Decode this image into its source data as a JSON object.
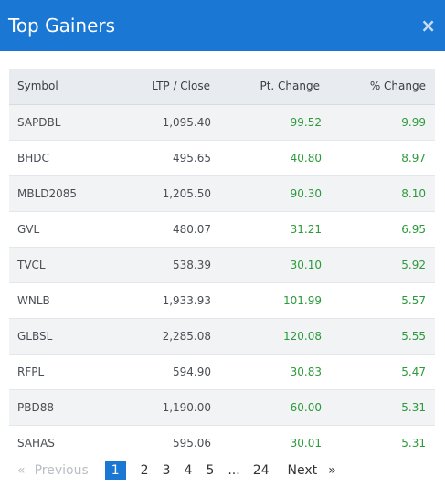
{
  "dialog": {
    "title": "Top Gainers",
    "close_symbol": "×"
  },
  "table": {
    "columns": {
      "symbol": "Symbol",
      "ltp": "LTP / Close",
      "pt_change": "Pt. Change",
      "pct_change": "% Change"
    },
    "rows": [
      {
        "symbol": "SAPDBL",
        "ltp": "1,095.40",
        "pt": "99.52",
        "pct": "9.99"
      },
      {
        "symbol": "BHDC",
        "ltp": "495.65",
        "pt": "40.80",
        "pct": "8.97"
      },
      {
        "symbol": "MBLD2085",
        "ltp": "1,205.50",
        "pt": "90.30",
        "pct": "8.10"
      },
      {
        "symbol": "GVL",
        "ltp": "480.07",
        "pt": "31.21",
        "pct": "6.95"
      },
      {
        "symbol": "TVCL",
        "ltp": "538.39",
        "pt": "30.10",
        "pct": "5.92"
      },
      {
        "symbol": "WNLB",
        "ltp": "1,933.93",
        "pt": "101.99",
        "pct": "5.57"
      },
      {
        "symbol": "GLBSL",
        "ltp": "2,285.08",
        "pt": "120.08",
        "pct": "5.55"
      },
      {
        "symbol": "RFPL",
        "ltp": "594.90",
        "pt": "30.83",
        "pct": "5.47"
      },
      {
        "symbol": "PBD88",
        "ltp": "1,190.00",
        "pt": "60.00",
        "pct": "5.31"
      },
      {
        "symbol": "SAHAS",
        "ltp": "595.06",
        "pt": "30.01",
        "pct": "5.31"
      }
    ]
  },
  "pagination": {
    "first_arrow": "«",
    "previous": "Previous",
    "pages": [
      "1",
      "2",
      "3",
      "4",
      "5"
    ],
    "current": "1",
    "ellipsis": "...",
    "last_page": "24",
    "next": "Next",
    "last_arrow": "»"
  },
  "colors": {
    "header_bg": "#1a78d4",
    "positive": "#2b9a3a",
    "active_page_bg": "#1a78d4"
  }
}
